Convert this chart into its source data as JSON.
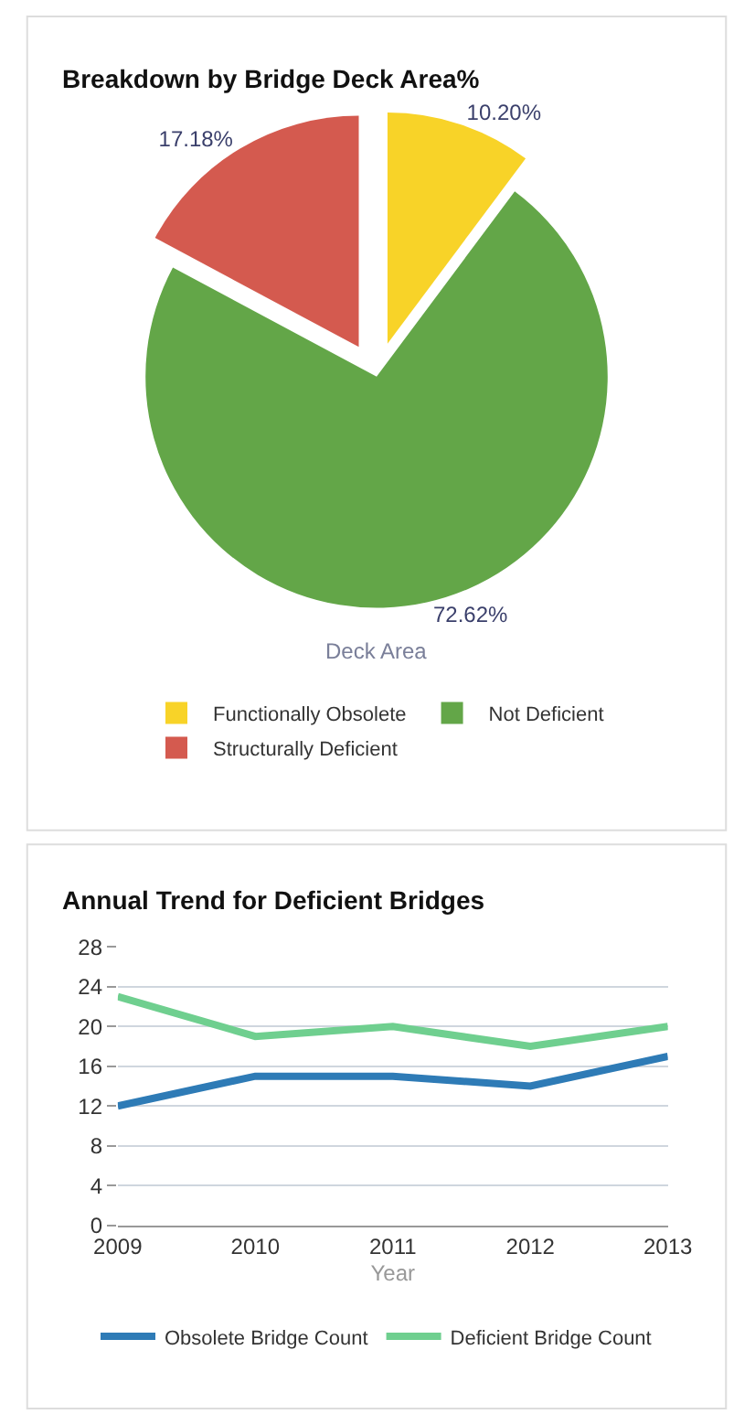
{
  "chart_data": [
    {
      "type": "pie",
      "title": "Breakdown by Bridge Deck Area%",
      "xlabel": "Deck Area",
      "categories": [
        "Functionally Obsolete",
        "Not Deficient",
        "Structurally Deficient"
      ],
      "values": [
        10.2,
        72.62,
        17.18
      ],
      "value_labels": [
        "10.20%",
        "72.62%",
        "17.18%"
      ],
      "colors": [
        "#f8d328",
        "#63a648",
        "#d45a4f"
      ],
      "legend": "bottom"
    },
    {
      "type": "line",
      "title": "Annual Trend for Deficient Bridges",
      "xlabel": "Year",
      "x": [
        2009,
        2010,
        2011,
        2012,
        2013
      ],
      "xlim": [
        2009,
        2013
      ],
      "xticks": [
        2009,
        2010,
        2011,
        2012,
        2013
      ],
      "ylim": [
        0,
        28
      ],
      "yticks": [
        0,
        4,
        8,
        12,
        16,
        20,
        24,
        28
      ],
      "grid": "y",
      "legend": "bottom",
      "marker": "none",
      "line_style": "solid",
      "series": [
        {
          "name": "Obsolete Bridge Count",
          "color": "#2e7bb6",
          "values": [
            12,
            15,
            15,
            14,
            17
          ]
        },
        {
          "name": "Deficient Bridge Count",
          "color": "#6fcf8f",
          "values": [
            23,
            19,
            20,
            18,
            20
          ]
        }
      ]
    }
  ]
}
